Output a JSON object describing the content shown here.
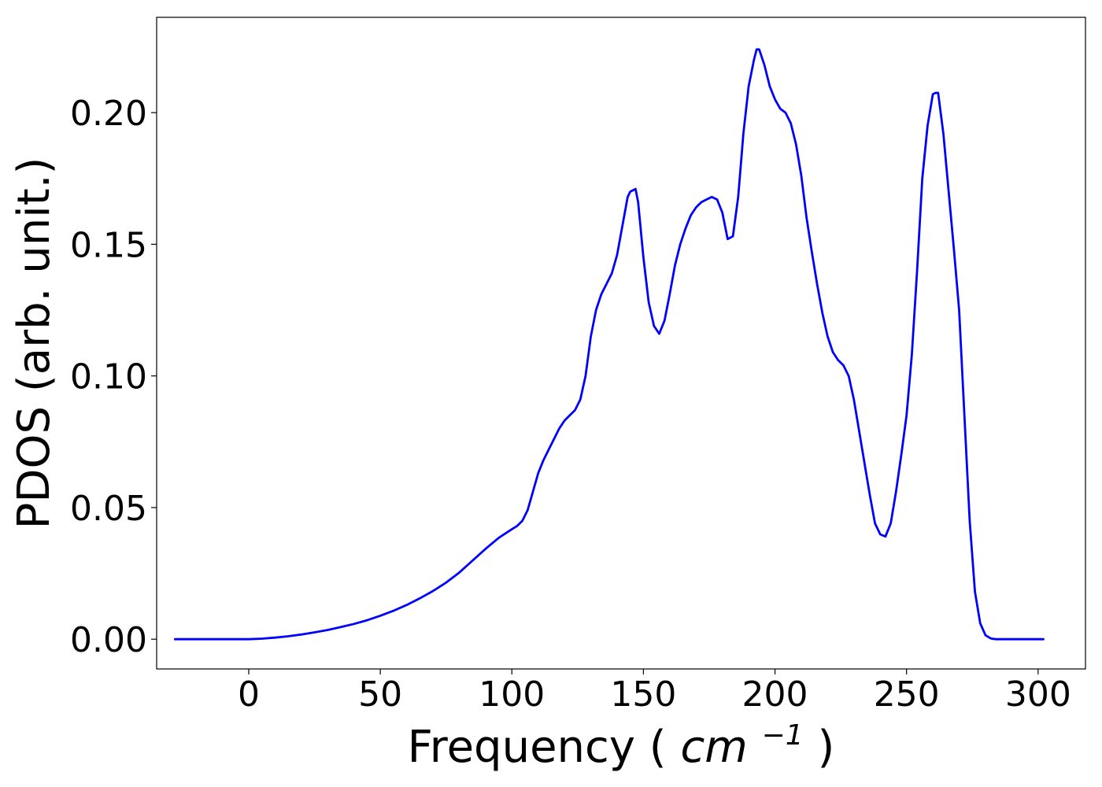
{
  "chart_data": {
    "type": "line",
    "title": "",
    "xlabel": "Frequency",
    "xlabel_unit_base": "cm",
    "xlabel_unit_exponent": "−1",
    "ylabel": "PDOS (arb. unit.)",
    "xlim": [
      -35,
      318
    ],
    "ylim": [
      -0.0113,
      0.2362
    ],
    "xticks": [
      0,
      50,
      100,
      150,
      200,
      250,
      300
    ],
    "xtick_labels": [
      "0",
      "50",
      "100",
      "150",
      "200",
      "250",
      "300"
    ],
    "yticks": [
      0.0,
      0.05,
      0.1,
      0.15,
      0.2
    ],
    "ytick_labels": [
      "0.00",
      "0.05",
      "0.10",
      "0.15",
      "0.20"
    ],
    "grid": false,
    "legend": false,
    "line_color": "#0000ff",
    "series": [
      {
        "x": [
          -28,
          -10,
          0,
          5,
          10,
          15,
          20,
          25,
          30,
          35,
          40,
          45,
          50,
          55,
          60,
          65,
          70,
          75,
          80,
          85,
          90,
          95,
          100,
          102,
          104,
          106,
          108,
          110,
          112,
          114,
          116,
          118,
          120,
          122,
          124,
          126,
          128,
          130,
          132,
          134,
          136,
          138,
          140,
          142,
          144,
          145,
          147,
          148,
          150,
          152,
          154,
          156,
          158,
          160,
          162,
          164,
          166,
          168,
          170,
          172,
          174,
          176,
          178,
          180,
          182,
          184,
          186,
          188,
          190,
          192,
          193,
          194,
          196,
          198,
          200,
          202,
          204,
          206,
          208,
          210,
          212,
          214,
          216,
          218,
          220,
          222,
          224,
          226,
          228,
          230,
          232,
          234,
          236,
          238,
          240,
          242,
          244,
          246,
          248,
          250,
          252,
          254,
          256,
          258,
          260,
          261,
          262,
          264,
          266,
          268,
          270,
          272,
          274,
          276,
          278,
          280,
          282,
          284,
          290,
          302
        ],
        "y": [
          0.0,
          0.0,
          0.0,
          0.0002,
          0.0006,
          0.0011,
          0.0018,
          0.0026,
          0.0035,
          0.0046,
          0.0058,
          0.0072,
          0.0089,
          0.0108,
          0.013,
          0.0155,
          0.0183,
          0.0215,
          0.0253,
          0.0298,
          0.0343,
          0.0385,
          0.0418,
          0.043,
          0.045,
          0.049,
          0.056,
          0.063,
          0.068,
          0.072,
          0.076,
          0.08,
          0.083,
          0.085,
          0.087,
          0.091,
          0.1,
          0.115,
          0.125,
          0.131,
          0.135,
          0.139,
          0.146,
          0.157,
          0.168,
          0.17,
          0.171,
          0.166,
          0.145,
          0.128,
          0.119,
          0.116,
          0.121,
          0.131,
          0.142,
          0.15,
          0.156,
          0.161,
          0.164,
          0.166,
          0.167,
          0.168,
          0.167,
          0.162,
          0.152,
          0.153,
          0.168,
          0.192,
          0.21,
          0.22,
          0.224,
          0.224,
          0.218,
          0.21,
          0.205,
          0.2015,
          0.2,
          0.196,
          0.188,
          0.176,
          0.16,
          0.147,
          0.135,
          0.124,
          0.115,
          0.109,
          0.106,
          0.104,
          0.1,
          0.091,
          0.079,
          0.067,
          0.055,
          0.044,
          0.0398,
          0.039,
          0.044,
          0.056,
          0.07,
          0.085,
          0.108,
          0.14,
          0.175,
          0.195,
          0.207,
          0.2075,
          0.2075,
          0.192,
          0.17,
          0.148,
          0.125,
          0.085,
          0.045,
          0.018,
          0.006,
          0.0015,
          0.0003,
          0.0,
          0.0,
          0.0
        ]
      }
    ]
  }
}
